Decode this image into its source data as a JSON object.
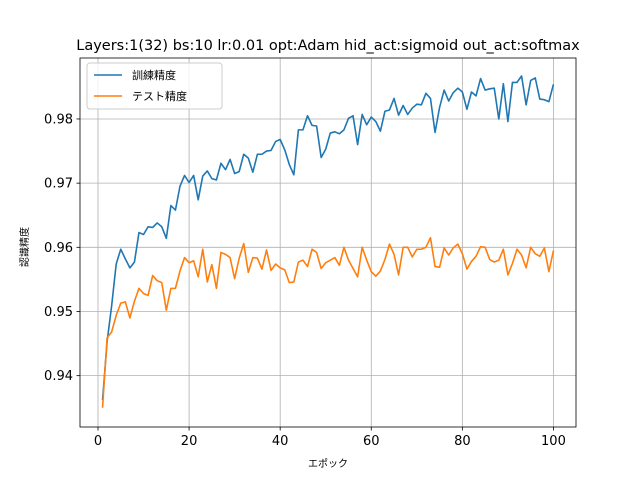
{
  "chart_data": {
    "type": "line",
    "title": "Layers:1(32) bs:10 lr:0.01 opt:Adam hid_act:sigmoid out_act:softmax",
    "xlabel": "エポック",
    "ylabel": "認識精度",
    "xlim": [
      -3.95,
      104.95
    ],
    "ylim": [
      0.932,
      0.9895
    ],
    "x_ticks": [
      0,
      20,
      40,
      60,
      80,
      100
    ],
    "y_ticks": [
      0.94,
      0.95,
      0.96,
      0.97,
      0.98
    ],
    "y_tick_labels": [
      "0.94",
      "0.95",
      "0.96",
      "0.97",
      "0.98"
    ],
    "grid": true,
    "legend_position": "top-left",
    "x": [
      1,
      2,
      3,
      4,
      5,
      6,
      7,
      8,
      9,
      10,
      11,
      12,
      13,
      14,
      15,
      16,
      17,
      18,
      19,
      20,
      21,
      22,
      23,
      24,
      25,
      26,
      27,
      28,
      29,
      30,
      31,
      32,
      33,
      34,
      35,
      36,
      37,
      38,
      39,
      40,
      41,
      42,
      43,
      44,
      45,
      46,
      47,
      48,
      49,
      50,
      51,
      52,
      53,
      54,
      55,
      56,
      57,
      58,
      59,
      60,
      61,
      62,
      63,
      64,
      65,
      66,
      67,
      68,
      69,
      70,
      71,
      72,
      73,
      74,
      75,
      76,
      77,
      78,
      79,
      80,
      81,
      82,
      83,
      84,
      85,
      86,
      87,
      88,
      89,
      90,
      91,
      92,
      93,
      94,
      95,
      96,
      97,
      98,
      99,
      100
    ],
    "series": [
      {
        "name": "訓練精度",
        "color": "#1f77b4",
        "values": [
          0.9362,
          0.9453,
          0.9509,
          0.9574,
          0.9597,
          0.9582,
          0.9568,
          0.9577,
          0.9623,
          0.962,
          0.9632,
          0.9631,
          0.9638,
          0.9632,
          0.9614,
          0.9665,
          0.9658,
          0.9695,
          0.9712,
          0.9701,
          0.9712,
          0.9674,
          0.9711,
          0.9719,
          0.9707,
          0.9705,
          0.9731,
          0.9721,
          0.9737,
          0.9715,
          0.9718,
          0.9745,
          0.9739,
          0.9717,
          0.9745,
          0.9745,
          0.975,
          0.9751,
          0.9765,
          0.9768,
          0.9752,
          0.9729,
          0.9713,
          0.9783,
          0.9783,
          0.9805,
          0.979,
          0.9789,
          0.974,
          0.9753,
          0.9778,
          0.978,
          0.9777,
          0.9783,
          0.9801,
          0.9805,
          0.976,
          0.9807,
          0.9791,
          0.9803,
          0.9796,
          0.9781,
          0.9812,
          0.9814,
          0.9832,
          0.9806,
          0.9821,
          0.9807,
          0.9817,
          0.9823,
          0.9822,
          0.984,
          0.9832,
          0.9779,
          0.9818,
          0.9845,
          0.9828,
          0.9841,
          0.9848,
          0.9842,
          0.9815,
          0.9842,
          0.9836,
          0.9863,
          0.9845,
          0.9847,
          0.9848,
          0.98,
          0.9855,
          0.9796,
          0.9857,
          0.9857,
          0.9867,
          0.9822,
          0.986,
          0.9864,
          0.9831,
          0.983,
          0.9827,
          0.9854
        ]
      },
      {
        "name": "テスト精度",
        "color": "#ff7f0e",
        "values": [
          0.935,
          0.9459,
          0.9468,
          0.9494,
          0.9513,
          0.9515,
          0.949,
          0.9516,
          0.9536,
          0.9528,
          0.9525,
          0.9556,
          0.9548,
          0.9545,
          0.9502,
          0.9536,
          0.9536,
          0.9563,
          0.9584,
          0.9576,
          0.9579,
          0.9554,
          0.9597,
          0.9546,
          0.9573,
          0.9536,
          0.9592,
          0.9589,
          0.9584,
          0.9551,
          0.9583,
          0.9606,
          0.9561,
          0.9584,
          0.9583,
          0.9566,
          0.9596,
          0.9564,
          0.9574,
          0.9568,
          0.9565,
          0.9545,
          0.9546,
          0.9577,
          0.958,
          0.957,
          0.9597,
          0.9592,
          0.9567,
          0.9576,
          0.958,
          0.9584,
          0.9572,
          0.96,
          0.958,
          0.9567,
          0.9554,
          0.96,
          0.958,
          0.9562,
          0.9555,
          0.9563,
          0.9581,
          0.9605,
          0.9589,
          0.9557,
          0.96,
          0.96,
          0.9585,
          0.9597,
          0.9597,
          0.96,
          0.9615,
          0.957,
          0.9569,
          0.9599,
          0.9588,
          0.9599,
          0.9605,
          0.959,
          0.9566,
          0.9578,
          0.9586,
          0.9601,
          0.96,
          0.9581,
          0.9577,
          0.958,
          0.9597,
          0.9557,
          0.9575,
          0.9597,
          0.9588,
          0.9568,
          0.96,
          0.959,
          0.9586,
          0.9599,
          0.9562,
          0.9595
        ]
      }
    ]
  }
}
